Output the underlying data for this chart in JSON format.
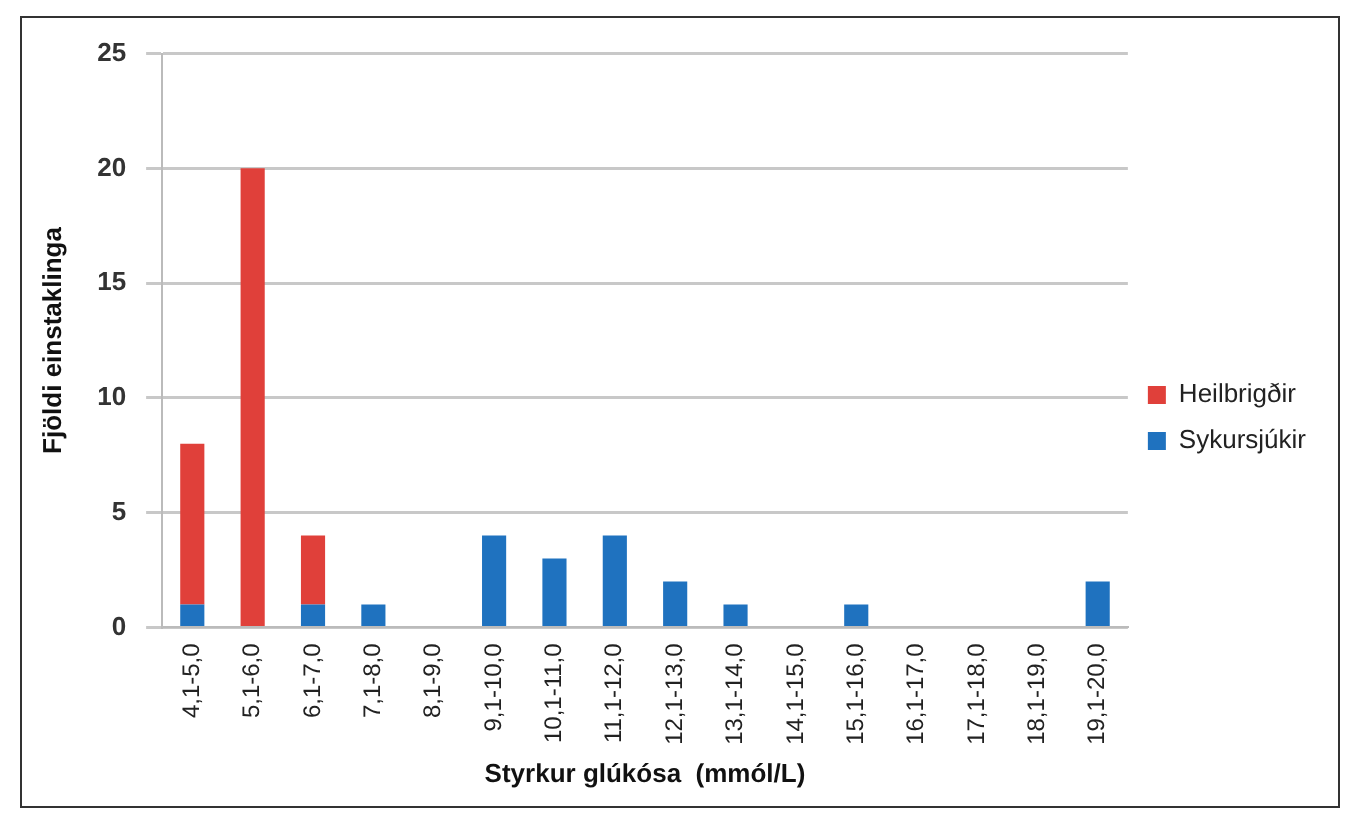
{
  "chart_data": {
    "type": "bar",
    "stacked": true,
    "xlabel": "Styrkur glúkósa  (mmól/L)",
    "ylabel": "Fjöldi einstaklinga",
    "categories": [
      "4,1-5,0",
      "5,1-6,0",
      "6,1-7,0",
      "7,1-8,0",
      "8,1-9,0",
      "9,1-10,0",
      "10,1-11,0",
      "11,1-12,0",
      "12,1-13,0",
      "13,1-14,0",
      "14,1-15,0",
      "15,1-16,0",
      "16,1-17,0",
      "17,1-18,0",
      "18,1-19,0",
      "19,1-20,0"
    ],
    "series": [
      {
        "name": "Sykursjúkir",
        "color": "#1f72bf",
        "values": [
          1,
          0,
          1,
          1,
          0,
          4,
          3,
          4,
          2,
          1,
          0,
          1,
          0,
          0,
          0,
          2
        ]
      },
      {
        "name": "Heilbrigðir",
        "color": "#e0403a",
        "values": [
          7,
          20,
          3,
          0,
          0,
          0,
          0,
          0,
          0,
          0,
          0,
          0,
          0,
          0,
          0,
          0
        ]
      }
    ],
    "ylim": [
      0,
      25
    ],
    "yticks": [
      0,
      5,
      10,
      15,
      20,
      25
    ],
    "grid": "y",
    "legend": "right"
  }
}
